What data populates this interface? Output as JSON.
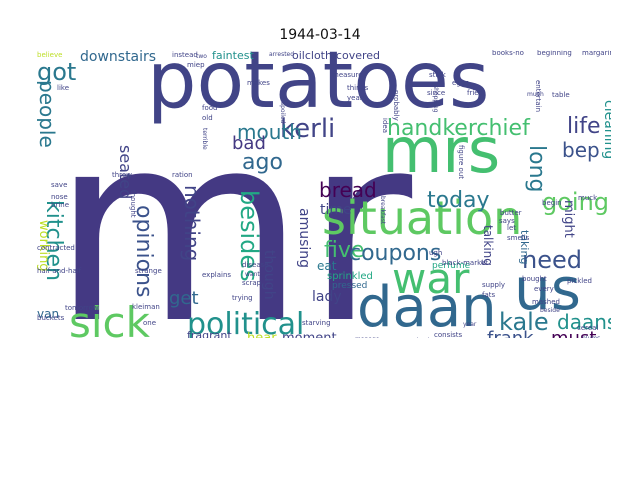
{
  "figure": {
    "title": "1944-03-14"
  },
  "palette": {
    "dark_purple": "#443983",
    "indigo": "#414487",
    "blue": "#31688e",
    "slate": "#2a788e",
    "teal": "#21918c",
    "sea": "#22a884",
    "green": "#44bf70",
    "lime": "#7ad151",
    "yellow": "#bddf26",
    "deep": "#440154"
  },
  "words": [
    {
      "text": "mr",
      "color": "#443983"
    },
    {
      "text": "potatoes",
      "color": "#414487"
    },
    {
      "text": "mrs",
      "color": "#44bf70"
    },
    {
      "text": "situation",
      "color": "#5ec962"
    },
    {
      "text": "daan",
      "color": "#31688e"
    },
    {
      "text": "war",
      "color": "#44bf70"
    },
    {
      "text": "us",
      "color": "#31688e"
    },
    {
      "text": "sick",
      "color": "#5ec962"
    },
    {
      "text": "political",
      "color": "#21918c"
    },
    {
      "text": "kerli",
      "color": "#414487"
    },
    {
      "text": "handkerchief",
      "color": "#44bf70"
    },
    {
      "text": "got",
      "color": "#2a788e"
    },
    {
      "text": "people",
      "color": "#2a788e"
    },
    {
      "text": "kitchen",
      "color": "#21918c"
    },
    {
      "text": "mouth",
      "color": "#2a788e"
    },
    {
      "text": "life",
      "color": "#414487"
    },
    {
      "text": "bep",
      "color": "#3b528b"
    },
    {
      "text": "ago",
      "color": "#31688e"
    },
    {
      "text": "bad",
      "color": "#443983"
    },
    {
      "text": "long",
      "color": "#2a788e"
    },
    {
      "text": "bread",
      "color": "#440154"
    },
    {
      "text": "going",
      "color": "#5ec962"
    },
    {
      "text": "five",
      "color": "#44bf70"
    },
    {
      "text": "coupons",
      "color": "#31688e"
    },
    {
      "text": "today",
      "color": "#2a788e"
    },
    {
      "text": "opinions",
      "color": "#3b528b"
    },
    {
      "text": "nothing",
      "color": "#414487"
    },
    {
      "text": "besides",
      "color": "#22a884"
    },
    {
      "text": "need",
      "color": "#3b528b"
    },
    {
      "text": "kale",
      "color": "#2a788e"
    },
    {
      "text": "daans",
      "color": "#21918c"
    },
    {
      "text": "frank",
      "color": "#3b528b"
    },
    {
      "text": "must",
      "color": "#440154"
    },
    {
      "text": "seated",
      "color": "#414487"
    },
    {
      "text": "downstairs",
      "color": "#31688e"
    },
    {
      "text": "cleaning",
      "color": "#21918c"
    },
    {
      "text": "get",
      "color": "#31688e"
    },
    {
      "text": "time",
      "color": "#414487"
    },
    {
      "text": "amusing",
      "color": "#414487"
    },
    {
      "text": "though",
      "color": "#414487"
    },
    {
      "text": "eat",
      "color": "#2a788e"
    },
    {
      "text": "lady",
      "color": "#414487"
    },
    {
      "text": "moment",
      "color": "#414487"
    },
    {
      "text": "hear",
      "color": "#bddf26"
    },
    {
      "text": "van",
      "color": "#31688e"
    },
    {
      "text": "working",
      "color": "#bddf26"
    },
    {
      "text": "oilcloth-covered",
      "color": "#414487"
    },
    {
      "text": "faintest",
      "color": "#21918c"
    },
    {
      "text": "might",
      "color": "#414487"
    },
    {
      "text": "taking",
      "color": "#31688e"
    },
    {
      "text": "talking",
      "color": "#414487"
    },
    {
      "text": "fragrant",
      "color": "#414487"
    },
    {
      "text": "sprinkled",
      "color": "#22a884"
    },
    {
      "text": "pressed",
      "color": "#31688e"
    },
    {
      "text": "perfume",
      "color": "#22a884"
    },
    {
      "text": "instead",
      "color": "#414487"
    },
    {
      "text": "believe",
      "color": "#bddf26"
    },
    {
      "text": "beginning",
      "color": "#414487"
    },
    {
      "text": "margarine",
      "color": "#414487"
    },
    {
      "text": "books-no",
      "color": "#414487"
    },
    {
      "text": "stink",
      "color": "#414487"
    },
    {
      "text": "measure",
      "color": "#414487"
    },
    {
      "text": "thinks",
      "color": "#414487"
    },
    {
      "text": "years",
      "color": "#414487"
    },
    {
      "text": "fried",
      "color": "#414487"
    },
    {
      "text": "much",
      "color": "#414487"
    },
    {
      "text": "table",
      "color": "#414487"
    },
    {
      "text": "probably",
      "color": "#414487"
    },
    {
      "text": "since",
      "color": "#414487"
    },
    {
      "text": "old",
      "color": "#414487"
    },
    {
      "text": "food",
      "color": "#414487"
    },
    {
      "text": "like",
      "color": "#414487"
    },
    {
      "text": "ration",
      "color": "#414487"
    },
    {
      "text": "butter",
      "color": "#414487"
    },
    {
      "text": "begin",
      "color": "#414487"
    },
    {
      "text": "let",
      "color": "#414487"
    },
    {
      "text": "smells",
      "color": "#414487"
    },
    {
      "text": "says",
      "color": "#414487"
    },
    {
      "text": "save",
      "color": "#414487"
    },
    {
      "text": "nose",
      "color": "#414487"
    },
    {
      "text": "brine",
      "color": "#414487"
    },
    {
      "text": "contracted",
      "color": "#414487"
    },
    {
      "text": "throw",
      "color": "#414487"
    },
    {
      "text": "strange",
      "color": "#414487"
    },
    {
      "text": "explains",
      "color": "#414487"
    },
    {
      "text": "trying",
      "color": "#414487"
    },
    {
      "text": "starving",
      "color": "#414487"
    },
    {
      "text": "half-and-half",
      "color": "#414487"
    },
    {
      "text": "buckets",
      "color": "#414487"
    },
    {
      "text": "tomorrow",
      "color": "#414487"
    },
    {
      "text": "kleiman",
      "color": "#414487"
    },
    {
      "text": "wretched",
      "color": "#414487"
    },
    {
      "text": "consists",
      "color": "#414487"
    },
    {
      "text": "supply",
      "color": "#414487"
    },
    {
      "text": "fats",
      "color": "#414487"
    },
    {
      "text": "mashed",
      "color": "#414487"
    },
    {
      "text": "bought",
      "color": "#414487"
    },
    {
      "text": "every",
      "color": "#414487"
    },
    {
      "text": "pickled",
      "color": "#414487"
    },
    {
      "text": "black-market",
      "color": "#414487"
    },
    {
      "text": "ugh",
      "color": "#414487"
    },
    {
      "text": "muck",
      "color": "#414487"
    },
    {
      "text": "manage",
      "color": "#414487"
    },
    {
      "text": "thought",
      "color": "#414487"
    },
    {
      "text": "scrap",
      "color": "#414487"
    },
    {
      "text": "disease",
      "color": "#414487"
    },
    {
      "text": "want",
      "color": "#414487"
    },
    {
      "text": "breakfast",
      "color": "#414487"
    },
    {
      "text": "figure out",
      "color": "#414487"
    },
    {
      "text": "idea",
      "color": "#414487"
    },
    {
      "text": "spoiled",
      "color": "#414487"
    },
    {
      "text": "terrible",
      "color": "#414487"
    },
    {
      "text": "arrested",
      "color": "#414487"
    },
    {
      "text": "makes",
      "color": "#414487"
    },
    {
      "text": "entertain",
      "color": "#414487"
    },
    {
      "text": "shopping",
      "color": "#414487"
    },
    {
      "text": "eggs",
      "color": "#414487"
    },
    {
      "text": "plums",
      "color": "#414487"
    },
    {
      "text": "cereal",
      "color": "#414487"
    },
    {
      "text": "one",
      "color": "#414487"
    },
    {
      "text": "year",
      "color": "#414487"
    },
    {
      "text": "two",
      "color": "#414487"
    },
    {
      "text": "miep",
      "color": "#414487"
    },
    {
      "text": "beside",
      "color": "#414487"
    }
  ]
}
